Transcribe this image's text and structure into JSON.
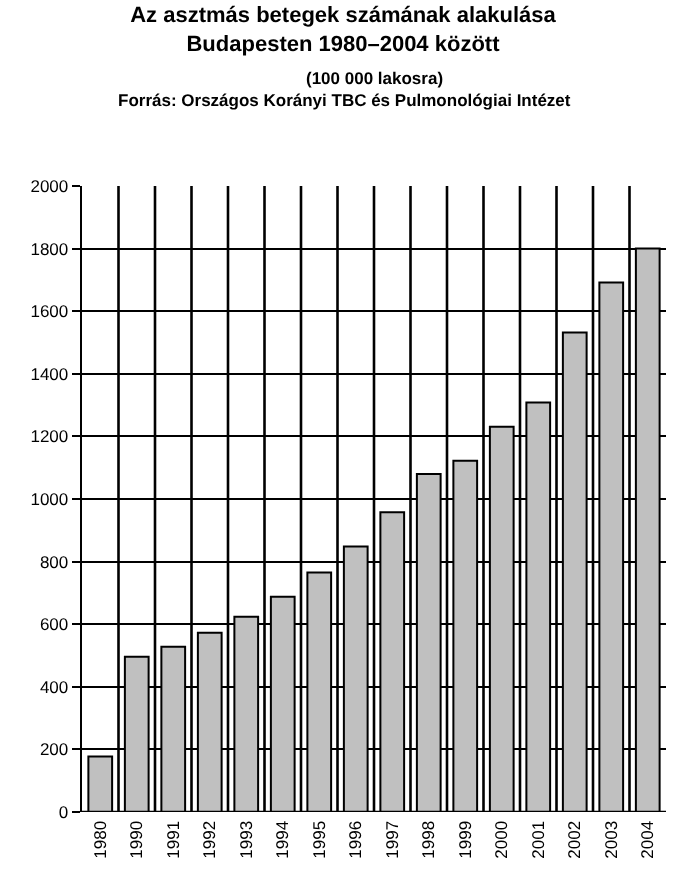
{
  "chart_data": {
    "type": "bar",
    "title": "Az asztmás betegek számának alakulása Budapesten 1980–2004 között",
    "subtitle": "(100 000 lakosra)",
    "annotations": [
      "Forrás: Országos Korányi TBC és Pulmonológiai Intézet"
    ],
    "categories": [
      "1980",
      "1990",
      "1991",
      "1992",
      "1993",
      "1994",
      "1995",
      "1996",
      "1997",
      "1998",
      "1999",
      "2000",
      "2001",
      "2002",
      "2003",
      "2004"
    ],
    "values": [
      177,
      496,
      528,
      573,
      624,
      688,
      765,
      848,
      958,
      1080,
      1122,
      1231,
      1308,
      1532,
      1692,
      1800
    ],
    "color": "#c0c0c0",
    "ylim": [
      0,
      2000
    ],
    "yticks": [
      0,
      200,
      400,
      600,
      800,
      1000,
      1200,
      1400,
      1600,
      1800,
      2000
    ],
    "grid": true
  }
}
